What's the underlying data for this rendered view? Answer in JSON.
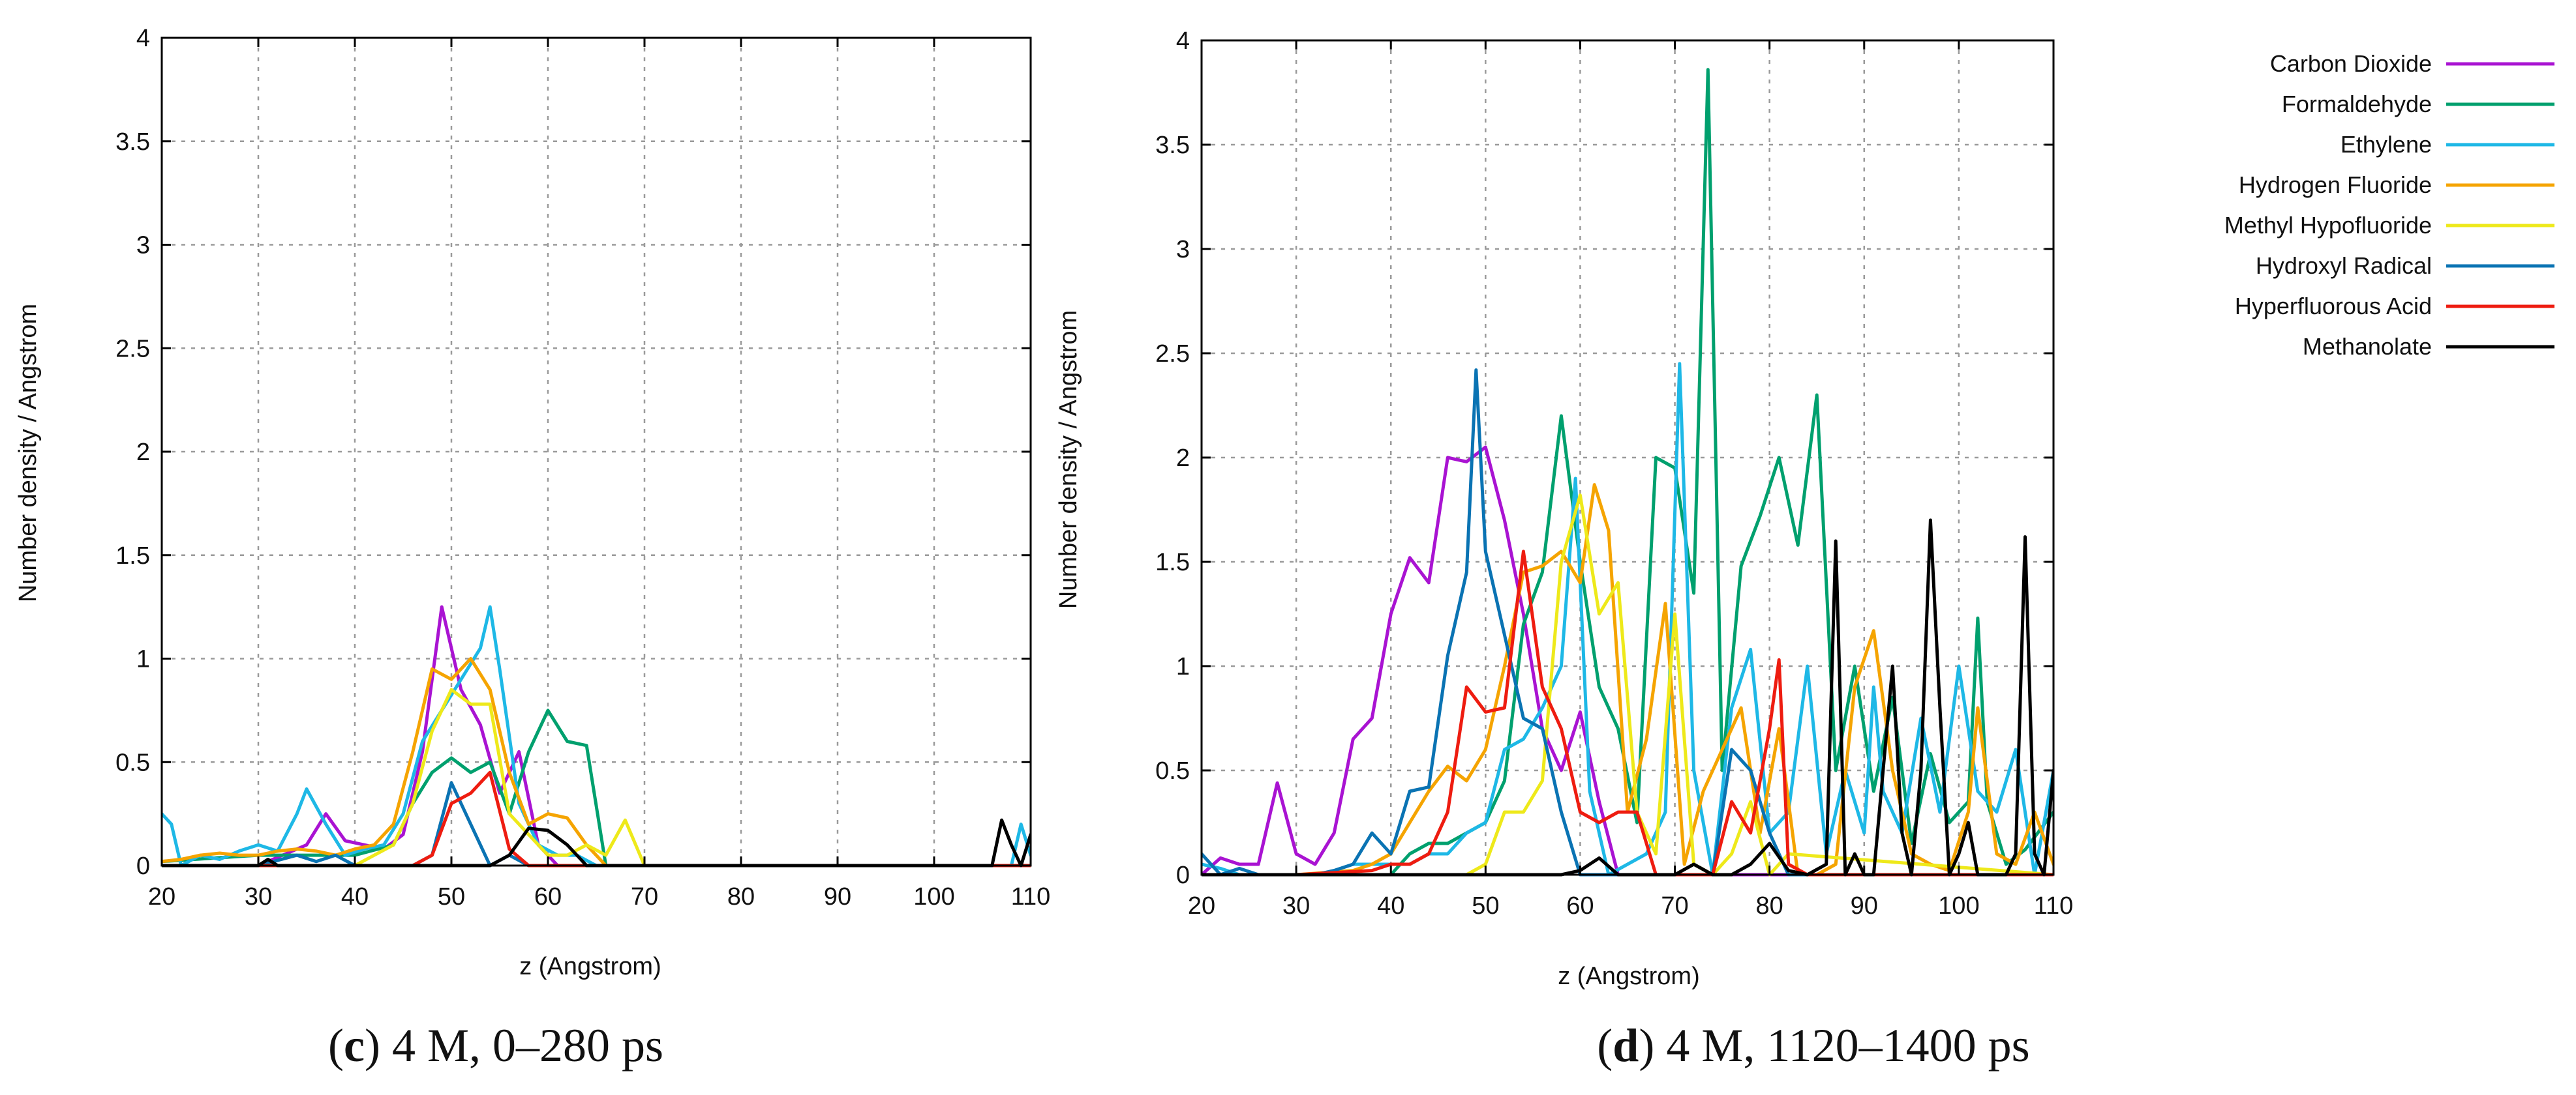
{
  "palette": {
    "Carbon Dioxide": "#a913d2",
    "Formaldehyde": "#00a06e",
    "Ethylene": "#1eb8e6",
    "Hydrogen Fluoride": "#f5a400",
    "Methyl Hypofluoride": "#eee91a",
    "Hydroxyl Radical": "#0a73b3",
    "Hyperfluorous Acid": "#ee1c10",
    "Methanolate": "#000000"
  },
  "legend": {
    "placement": "top-right",
    "entries": [
      "Carbon Dioxide",
      "Formaldehyde",
      "Ethylene",
      "Hydrogen Fluoride",
      "Methyl Hypofluoride",
      "Hydroxyl Radical",
      "Hyperfluorous Acid",
      "Methanolate"
    ]
  },
  "chart_data": [
    {
      "type": "line",
      "panel": "c",
      "caption_letter": "c",
      "caption_text": " 4 M, 0–280 ps",
      "xlabel": "z (Angstrom)",
      "ylabel": "Number density / Angstrom",
      "xlim": [
        20,
        110
      ],
      "ylim": [
        0,
        4
      ],
      "xticks": [
        "20",
        "30",
        "40",
        "50",
        "60",
        "70",
        "80",
        "90",
        "100",
        "110"
      ],
      "yticks": [
        "0",
        "0.5",
        "1",
        "1.5",
        "2",
        "2.5",
        "3",
        "3.5",
        "4"
      ],
      "grid": true,
      "series": [
        {
          "name": "Carbon Dioxide",
          "x": [
            20,
            30,
            35,
            37,
            39,
            41,
            43,
            45,
            47,
            49,
            51,
            53,
            55,
            57,
            59,
            61,
            63,
            110
          ],
          "y": [
            0,
            0,
            0.1,
            0.25,
            0.12,
            0.1,
            0.08,
            0.15,
            0.55,
            1.25,
            0.85,
            0.68,
            0.35,
            0.55,
            0.1,
            0,
            0,
            0
          ]
        },
        {
          "name": "Formaldehyde",
          "x": [
            20,
            30,
            40,
            44,
            46,
            48,
            50,
            52,
            54,
            56,
            58,
            60,
            62,
            64,
            66,
            110
          ],
          "y": [
            0.02,
            0.05,
            0.05,
            0.1,
            0.3,
            0.45,
            0.52,
            0.45,
            0.5,
            0.25,
            0.55,
            0.75,
            0.6,
            0.58,
            0,
            0
          ]
        },
        {
          "name": "Ethylene",
          "x": [
            20,
            21,
            22,
            24,
            26,
            28,
            30,
            32,
            34,
            35,
            37,
            39,
            41,
            43,
            45,
            47,
            49,
            51,
            53,
            54,
            55,
            57,
            59,
            61,
            63,
            65,
            67,
            106,
            108,
            109,
            110
          ],
          "y": [
            0.25,
            0.2,
            0,
            0.05,
            0.03,
            0.07,
            0.1,
            0.07,
            0.25,
            0.37,
            0.2,
            0.05,
            0.08,
            0.1,
            0.25,
            0.6,
            0.75,
            0.9,
            1.05,
            1.25,
            0.95,
            0.3,
            0.1,
            0.05,
            0.05,
            0,
            0,
            0,
            0,
            0.2,
            0.05
          ]
        },
        {
          "name": "Hydrogen Fluoride",
          "x": [
            20,
            22,
            24,
            26,
            28,
            30,
            32,
            34,
            36,
            38,
            40,
            42,
            44,
            46,
            48,
            50,
            52,
            54,
            56,
            58,
            60,
            62,
            64,
            66,
            110
          ],
          "y": [
            0.02,
            0.03,
            0.05,
            0.06,
            0.05,
            0.05,
            0.07,
            0.08,
            0.07,
            0.05,
            0.08,
            0.1,
            0.2,
            0.55,
            0.95,
            0.9,
            1.0,
            0.85,
            0.45,
            0.2,
            0.25,
            0.23,
            0.1,
            0,
            0
          ]
        },
        {
          "name": "Methyl Hypofluoride",
          "x": [
            20,
            40,
            44,
            46,
            48,
            50,
            52,
            54,
            56,
            58,
            60,
            62,
            64,
            66,
            68,
            70,
            110
          ],
          "y": [
            0,
            0,
            0.1,
            0.3,
            0.65,
            0.85,
            0.78,
            0.78,
            0.25,
            0.15,
            0.05,
            0.05,
            0.1,
            0.05,
            0.22,
            0,
            0
          ]
        },
        {
          "name": "Hydroxyl Radical",
          "x": [
            20,
            30,
            34,
            36,
            38,
            40,
            46,
            48,
            50,
            52,
            54,
            56,
            58,
            60,
            110
          ],
          "y": [
            0,
            0,
            0.05,
            0.02,
            0.05,
            0,
            0,
            0.05,
            0.4,
            0.2,
            0,
            0.05,
            0,
            0,
            0
          ]
        },
        {
          "name": "Hyperfluorous Acid",
          "x": [
            20,
            46,
            48,
            50,
            52,
            54,
            56,
            58,
            60,
            110
          ],
          "y": [
            0,
            0,
            0.05,
            0.3,
            0.35,
            0.45,
            0.08,
            0,
            0,
            0
          ]
        },
        {
          "name": "Methanolate",
          "x": [
            20,
            30,
            31,
            32,
            33,
            54,
            56,
            58,
            60,
            62,
            64,
            66,
            106,
            107,
            108,
            109,
            110
          ],
          "y": [
            0,
            0,
            0.03,
            0,
            0,
            0,
            0.05,
            0.18,
            0.17,
            0.1,
            0,
            0,
            0,
            0.22,
            0.1,
            0,
            0.15
          ]
        }
      ]
    },
    {
      "type": "line",
      "panel": "d",
      "caption_letter": "d",
      "caption_text": " 4 M, 1120–1400 ps",
      "xlabel": "z (Angstrom)",
      "ylabel": "Number density / Angstrom",
      "xlim": [
        20,
        110
      ],
      "ylim": [
        0,
        4
      ],
      "xticks": [
        "20",
        "30",
        "40",
        "50",
        "60",
        "70",
        "80",
        "90",
        "100",
        "110"
      ],
      "yticks": [
        "0",
        "0.5",
        "1",
        "1.5",
        "2",
        "2.5",
        "3",
        "3.5",
        "4"
      ],
      "grid": true,
      "series": [
        {
          "name": "Carbon Dioxide",
          "x": [
            20,
            22,
            24,
            26,
            28,
            30,
            32,
            34,
            36,
            38,
            40,
            42,
            44,
            46,
            48,
            50,
            52,
            54,
            56,
            58,
            60,
            62,
            64,
            66,
            110
          ],
          "y": [
            0,
            0.08,
            0.05,
            0.05,
            0.44,
            0.1,
            0.05,
            0.2,
            0.65,
            0.75,
            1.25,
            1.52,
            1.4,
            2.0,
            1.98,
            2.05,
            1.7,
            1.25,
            0.7,
            0.5,
            0.78,
            0.35,
            0,
            0,
            0
          ]
        },
        {
          "name": "Formaldehyde",
          "x": [
            20,
            40,
            42,
            44,
            46,
            48,
            50,
            52,
            54,
            56,
            58,
            60,
            62,
            64,
            66,
            68,
            70,
            72,
            73.5,
            75,
            77,
            79,
            81,
            83,
            85,
            87,
            89,
            91,
            93,
            95,
            97,
            99,
            101,
            102,
            103,
            105,
            107,
            110
          ],
          "y": [
            0,
            0,
            0.1,
            0.15,
            0.15,
            0.2,
            0.25,
            0.45,
            1.2,
            1.45,
            2.2,
            1.5,
            0.9,
            0.7,
            0.25,
            2.0,
            1.95,
            1.35,
            3.86,
            0.5,
            1.48,
            1.72,
            2.0,
            1.58,
            2.3,
            0.5,
            1.0,
            0.4,
            0.85,
            0.15,
            0.58,
            0.25,
            0.35,
            1.23,
            0.35,
            0.05,
            0.12,
            0.3
          ]
        },
        {
          "name": "Ethylene",
          "x": [
            20,
            22,
            24,
            26,
            28,
            30,
            32,
            34,
            36,
            38,
            40,
            42,
            44,
            46,
            48,
            50,
            52,
            54,
            56,
            58,
            59.5,
            61,
            63,
            65,
            67,
            69,
            70.5,
            72,
            74,
            76,
            78,
            80,
            82,
            84,
            86,
            88,
            90,
            91,
            92,
            94,
            96,
            98,
            100,
            102,
            104,
            106,
            108,
            110
          ],
          "y": [
            0.05,
            0.03,
            0,
            0,
            0,
            0,
            0,
            0.02,
            0.05,
            0.05,
            0.05,
            0.05,
            0.1,
            0.1,
            0.2,
            0.25,
            0.6,
            0.65,
            0.8,
            1.0,
            1.9,
            0.4,
            0,
            0.05,
            0.1,
            0.3,
            2.45,
            0.5,
            0,
            0.8,
            1.08,
            0.2,
            0.3,
            1.0,
            0.1,
            0.5,
            0.2,
            0.9,
            0.4,
            0.2,
            0.75,
            0.3,
            1.0,
            0.4,
            0.3,
            0.6,
            0,
            0.5
          ]
        },
        {
          "name": "Hydrogen Fluoride",
          "x": [
            20,
            30,
            36,
            38,
            40,
            42,
            44,
            46,
            48,
            50,
            52,
            54,
            56,
            58,
            60,
            61.5,
            63,
            65,
            67,
            69,
            71,
            73,
            75,
            77,
            79,
            81,
            83,
            85,
            87,
            89,
            91,
            93,
            95,
            97,
            99,
            101,
            102,
            104,
            106,
            108,
            110
          ],
          "y": [
            0,
            0,
            0.02,
            0.05,
            0.1,
            0.25,
            0.4,
            0.52,
            0.45,
            0.6,
            1.0,
            1.45,
            1.48,
            1.55,
            1.4,
            1.87,
            1.65,
            0.3,
            0.65,
            1.3,
            0.05,
            0.4,
            0.6,
            0.8,
            0.2,
            0.7,
            0,
            0,
            0.05,
            0.9,
            1.17,
            0.5,
            0.1,
            0.05,
            0.02,
            0.3,
            0.8,
            0.1,
            0.05,
            0.3,
            0.05
          ]
        },
        {
          "name": "Methyl Hypofluoride",
          "x": [
            20,
            48,
            50,
            52,
            54,
            56,
            58,
            60,
            62,
            64,
            66,
            68,
            70,
            72,
            74,
            76,
            78,
            80,
            82,
            110
          ],
          "y": [
            0,
            0,
            0.05,
            0.3,
            0.3,
            0.45,
            1.5,
            1.82,
            1.25,
            1.4,
            0.3,
            0.1,
            1.25,
            0.05,
            0,
            0.1,
            0.35,
            0,
            0.1,
            0
          ]
        },
        {
          "name": "Hydroxyl Radical",
          "x": [
            20,
            22,
            24,
            26,
            28,
            30,
            32,
            34,
            36,
            38,
            40,
            42,
            44,
            46,
            48,
            49,
            50,
            52,
            54,
            56,
            58,
            60,
            62,
            64,
            66,
            68,
            70,
            72,
            74,
            76,
            78,
            80,
            82,
            84,
            110
          ],
          "y": [
            0.1,
            0,
            0.03,
            0,
            0,
            0,
            0,
            0.02,
            0.05,
            0.2,
            0.1,
            0.4,
            0.42,
            1.05,
            1.45,
            2.42,
            1.55,
            1.15,
            0.75,
            0.7,
            0.3,
            0,
            0,
            0,
            0,
            0,
            0,
            0,
            0,
            0.6,
            0.5,
            0.2,
            0,
            0,
            0
          ]
        },
        {
          "name": "Hyperfluorous Acid",
          "x": [
            20,
            30,
            38,
            40,
            42,
            44,
            46,
            48,
            50,
            52,
            54,
            56,
            58,
            60,
            62,
            64,
            66,
            68,
            70,
            72,
            74,
            76,
            78,
            80,
            81,
            82,
            84,
            110
          ],
          "y": [
            0,
            0,
            0.02,
            0.05,
            0.05,
            0.1,
            0.3,
            0.9,
            0.78,
            0.8,
            1.55,
            0.9,
            0.7,
            0.3,
            0.25,
            0.3,
            0.3,
            0,
            0,
            0,
            0,
            0.35,
            0.2,
            0.7,
            1.03,
            0.05,
            0,
            0
          ]
        },
        {
          "name": "Methanolate",
          "x": [
            20,
            58,
            60,
            62,
            64,
            66,
            68,
            70,
            72,
            74,
            76,
            78,
            80,
            82,
            84,
            86,
            87,
            88,
            89,
            90,
            91,
            92,
            93,
            94,
            95,
            96,
            97,
            98,
            99,
            100,
            101,
            102,
            103,
            104,
            105,
            106,
            107,
            108,
            109,
            110
          ],
          "y": [
            0,
            0,
            0.02,
            0.08,
            0,
            0,
            0,
            0,
            0.05,
            0,
            0,
            0.05,
            0.15,
            0.02,
            0,
            0.05,
            1.6,
            0,
            0.1,
            0,
            0,
            0.5,
            1.0,
            0.2,
            0,
            0.5,
            1.7,
            0.8,
            0,
            0.1,
            0.25,
            0,
            0,
            0,
            0,
            0.1,
            1.62,
            0.1,
            0,
            0.5
          ]
        }
      ]
    }
  ]
}
